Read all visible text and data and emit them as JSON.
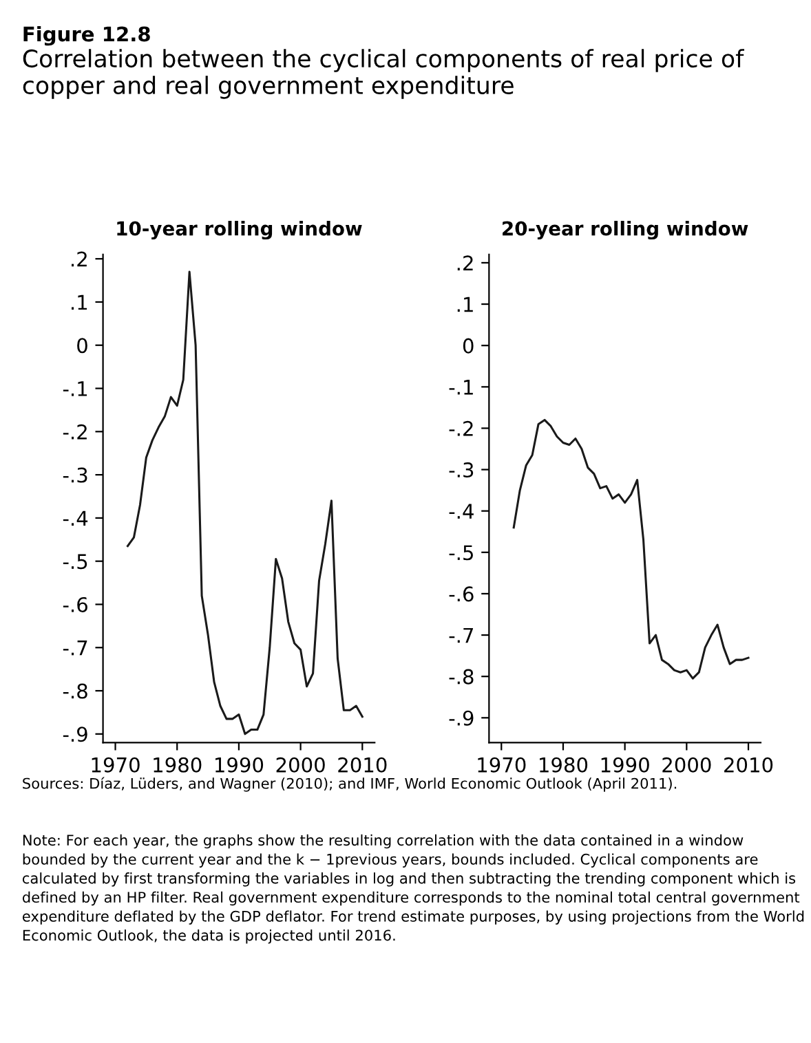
{
  "chart_data": [
    {
      "type": "line",
      "title": "10-year rolling window",
      "annotations": [
        "Figure 12.8",
        "Correlation between the cyclical components of real price of copper and real government expenditure",
        "Sources: Díaz, Lüders, and Wagner (2010); and IMF, World Economic Outlook (April 2011).",
        "Note: For each year, the graphs show the resulting correlation with the data contained in a window bounded by the current year and the k − 1previous years, bounds included. Cyclical components are calculated by first transforming the variables in log and then subtracting the trending component which is defined by an HP filter. Real government expenditure corresponds to the nominal total central government expenditure deflated by the GDP deflator. For trend estimate purposes, by using projections from the World Economic Outlook, the data is projected until 2016."
      ],
      "x": [
        1972,
        1973,
        1974,
        1975,
        1976,
        1977,
        1978,
        1979,
        1980,
        1981,
        1982,
        1983,
        1984,
        1985,
        1986,
        1987,
        1988,
        1989,
        1990,
        1991,
        1992,
        1993,
        1994,
        1995,
        1996,
        1997,
        1998,
        1999,
        2000,
        2001,
        2002,
        2003,
        2004,
        2005,
        2006,
        2007,
        2008,
        2009,
        2010
      ],
      "series": [
        {
          "color": "#1a1a1a",
          "values": [
            -0.465,
            -0.445,
            -0.37,
            -0.26,
            -0.22,
            -0.19,
            -0.165,
            -0.12,
            -0.14,
            -0.08,
            0.17,
            0.0,
            -0.58,
            -0.67,
            -0.78,
            -0.835,
            -0.865,
            -0.865,
            -0.855,
            -0.9,
            -0.89,
            -0.89,
            -0.855,
            -0.7,
            -0.495,
            -0.54,
            -0.64,
            -0.69,
            -0.705,
            -0.79,
            -0.76,
            -0.545,
            -0.46,
            -0.36,
            -0.725,
            -0.845,
            -0.845,
            -0.835,
            -0.86
          ]
        }
      ],
      "xlim": [
        1968,
        2012
      ],
      "xticks": [
        1970,
        1980,
        1990,
        2000,
        2010
      ],
      "ylim": [
        -0.92,
        0.21
      ],
      "yticks": [
        {
          "value": 0.2,
          "label": ".2"
        },
        {
          "value": 0.1,
          "label": ".1"
        },
        0,
        {
          "value": -0.1,
          "label": "-.1"
        },
        {
          "value": -0.2,
          "label": "-.2"
        },
        {
          "value": -0.3,
          "label": "-.3"
        },
        {
          "value": -0.4,
          "label": "-.4"
        },
        {
          "value": -0.5,
          "label": "-.5"
        },
        {
          "value": -0.6,
          "label": "-.6"
        },
        {
          "value": -0.7,
          "label": "-.7"
        },
        {
          "value": -0.8,
          "label": "-.8"
        },
        {
          "value": -0.9,
          "label": "-.9"
        }
      ],
      "grid": false,
      "legend": false,
      "marker": "none",
      "line_style": "solid"
    },
    {
      "type": "line",
      "title": "20-year rolling window",
      "x": [
        1972,
        1973,
        1974,
        1975,
        1976,
        1977,
        1978,
        1979,
        1980,
        1981,
        1982,
        1983,
        1984,
        1985,
        1986,
        1987,
        1988,
        1989,
        1990,
        1991,
        1992,
        1993,
        1994,
        1995,
        1996,
        1997,
        1998,
        1999,
        2000,
        2001,
        2002,
        2003,
        2004,
        2005,
        2006,
        2007,
        2008,
        2009,
        2010
      ],
      "series": [
        {
          "color": "#1a1a1a",
          "values": [
            -0.44,
            -0.35,
            -0.29,
            -0.265,
            -0.19,
            -0.18,
            -0.195,
            -0.22,
            -0.235,
            -0.24,
            -0.225,
            -0.25,
            -0.295,
            -0.31,
            -0.345,
            -0.34,
            -0.37,
            -0.36,
            -0.38,
            -0.36,
            -0.325,
            -0.47,
            -0.72,
            -0.7,
            -0.76,
            -0.77,
            -0.785,
            -0.79,
            -0.785,
            -0.805,
            -0.79,
            -0.73,
            -0.7,
            -0.675,
            -0.73,
            -0.77,
            -0.76,
            -0.76,
            -0.755
          ]
        }
      ],
      "xlim": [
        1968,
        2012
      ],
      "xticks": [
        1970,
        1980,
        1990,
        2000,
        2010
      ],
      "ylim": [
        -0.96,
        0.22
      ],
      "yticks": [
        {
          "value": 0.2,
          "label": ".2"
        },
        {
          "value": 0.1,
          "label": ".1"
        },
        0,
        {
          "value": -0.1,
          "label": "-.1"
        },
        {
          "value": -0.2,
          "label": "-.2"
        },
        {
          "value": -0.3,
          "label": "-.3"
        },
        {
          "value": -0.4,
          "label": "-.4"
        },
        {
          "value": -0.5,
          "label": "-.5"
        },
        {
          "value": -0.6,
          "label": "-.6"
        },
        {
          "value": -0.7,
          "label": "-.7"
        },
        {
          "value": -0.8,
          "label": "-.8"
        },
        {
          "value": -0.9,
          "label": "-.9"
        }
      ],
      "grid": false,
      "legend": false,
      "marker": "none",
      "line_style": "solid"
    }
  ]
}
